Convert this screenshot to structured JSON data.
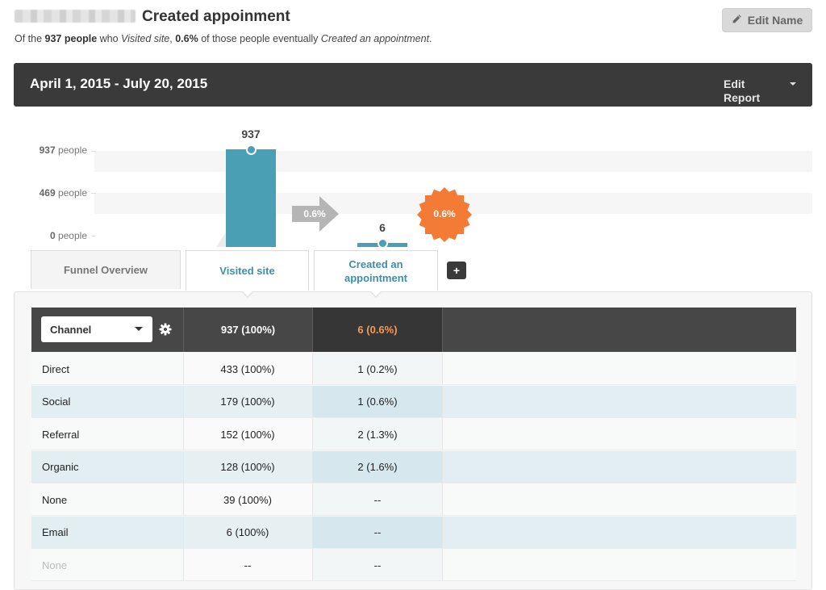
{
  "header": {
    "title": "Created appoinment",
    "edit_name_label": "Edit Name",
    "summary": {
      "prefix": "Of the ",
      "count": "937 people",
      "mid1": " who ",
      "step1": "Visited site",
      "mid2": ", ",
      "rate": "0.6%",
      "mid3": " of those people eventually ",
      "step2": "Created an appointment",
      "suffix": "."
    }
  },
  "date_bar": {
    "range": "April 1, 2015 - July 20, 2015",
    "edit_report_label": "Edit Report"
  },
  "chart_data": {
    "type": "bar",
    "categories": [
      "Visited site",
      "Created an appointment"
    ],
    "values": [
      937,
      6
    ],
    "value_labels": [
      "937",
      "6"
    ],
    "y_ticks": [
      {
        "value": 937,
        "num": "937",
        "unit": " people"
      },
      {
        "value": 469,
        "num": "469",
        "unit": " people"
      },
      {
        "value": 0,
        "num": "0",
        "unit": " people"
      }
    ],
    "ylim": [
      0,
      937
    ],
    "conversion_arrow": "0.6%",
    "conversion_badge": "0.6%",
    "colors": {
      "bar": "#4a9fb5",
      "arrow": "#b5b5b5",
      "badge": "#f37b36"
    }
  },
  "tabs": {
    "overview": "Funnel Overview",
    "step1": "Visited site",
    "step2": "Created an appointment",
    "add_label": "+"
  },
  "table": {
    "breakdown_select": "Channel",
    "header_values": [
      "937 (100%)",
      "6 (0.6%)"
    ],
    "rows": [
      {
        "name": "Direct",
        "v1": "433 (100%)",
        "v2": "1 (0.2%)"
      },
      {
        "name": "Social",
        "v1": "179 (100%)",
        "v2": "1 (0.6%)"
      },
      {
        "name": "Referral",
        "v1": "152 (100%)",
        "v2": "2 (1.3%)"
      },
      {
        "name": "Organic",
        "v1": "128 (100%)",
        "v2": "2 (1.6%)"
      },
      {
        "name": "None",
        "v1": "39 (100%)",
        "v2": "--"
      },
      {
        "name": "Email",
        "v1": "6 (100%)",
        "v2": "--"
      },
      {
        "name": "None",
        "v1": "--",
        "v2": "--"
      }
    ],
    "colors": {
      "header": "#474747",
      "header_highlight": "#363636",
      "accent": "#f39a5c",
      "stripe": "#e3eef2",
      "stripe_col": "#d7e7ee"
    }
  }
}
